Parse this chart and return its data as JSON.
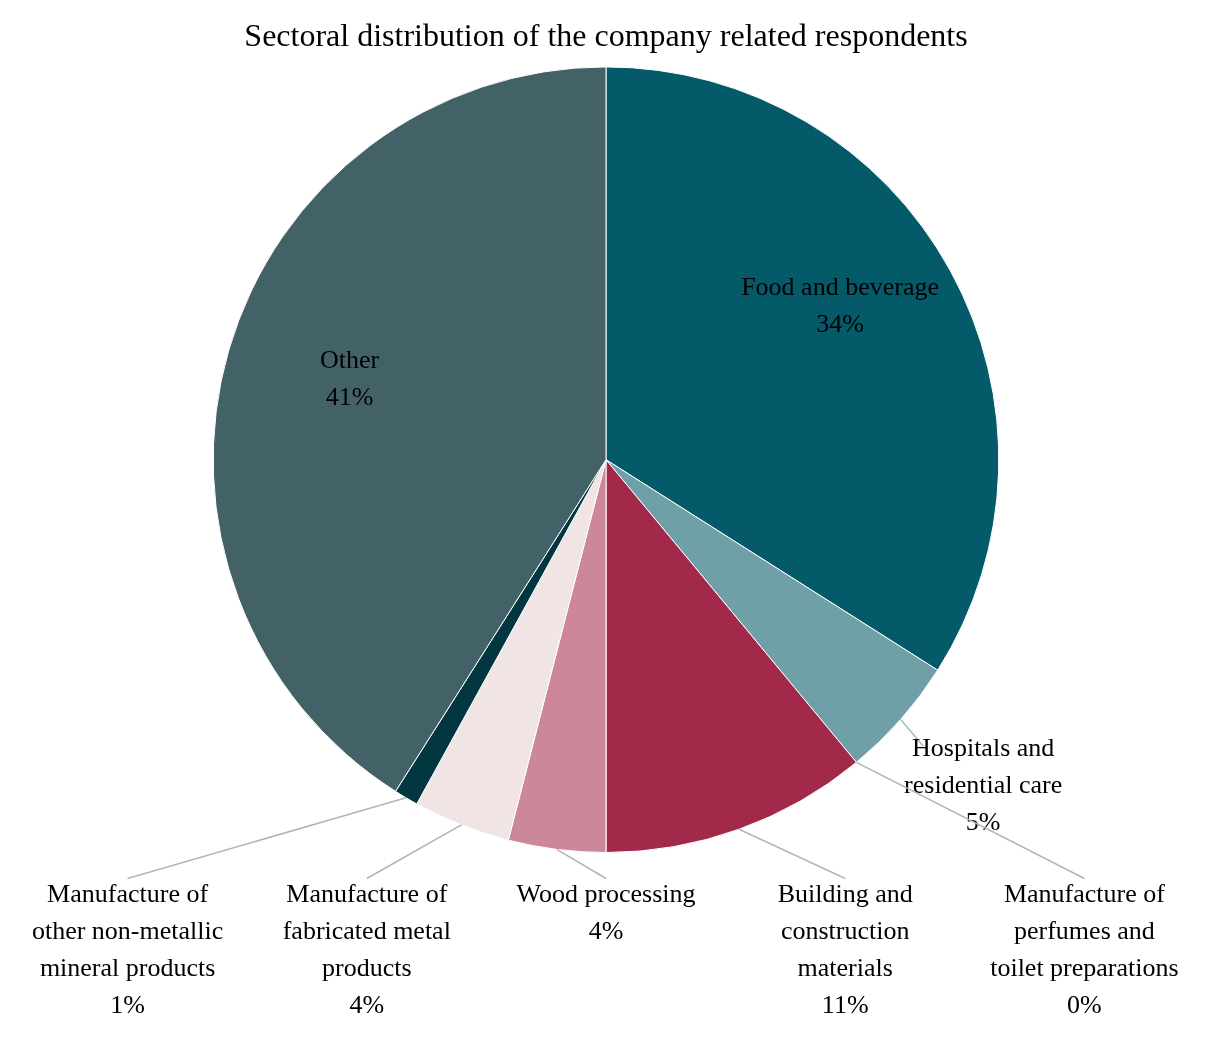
{
  "chart_data": {
    "type": "pie",
    "title": "Sectoral distribution of the company related respondents",
    "categories": [
      "Food and beverage",
      "Hospitals and residential care",
      "Manufacture of perfumes and toilet preparations",
      "Building and construction materials",
      "Wood processing",
      "Manufacture of fabricated metal products",
      "Manufacture of other non-metallic mineral products",
      "Other"
    ],
    "values": [
      34,
      5,
      0,
      11,
      4,
      4,
      1,
      41
    ],
    "value_labels": [
      "34%",
      "5%",
      "0%",
      "11%",
      "4%",
      "4%",
      "1%",
      "41%"
    ],
    "colors": [
      "#055a6a",
      "#6fa0a8",
      "#d0d8da",
      "#a3294a",
      "#cc8899",
      "#f0e4e4",
      "#023640",
      "#426268"
    ]
  }
}
